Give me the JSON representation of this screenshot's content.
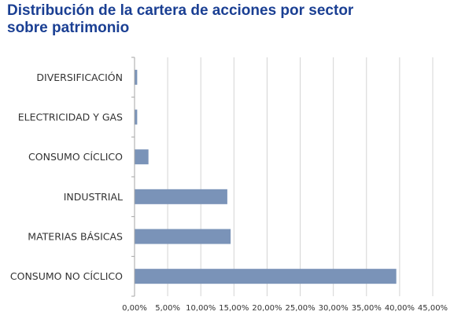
{
  "title_lines": [
    "Distribución de la cartera de acciones por sector",
    "sobre patrimonio"
  ],
  "chart_data": {
    "type": "bar",
    "orientation": "horizontal",
    "title": "Distribución de la cartera de acciones por sector sobre patrimonio",
    "categories": [
      "DIVERSIFICACIÓN",
      "ELECTRICIDAD Y GAS",
      "CONSUMO CÍCLICO",
      "INDUSTRIAL",
      "MATERIAS BÁSICAS",
      "CONSUMO NO CÍCLICO"
    ],
    "values": [
      0.4,
      0.4,
      2.1,
      14.0,
      14.5,
      39.5
    ],
    "xlim": [
      0,
      45
    ],
    "xticks": [
      "0,00%",
      "5,00%",
      "10,00%",
      "15,00%",
      "20,00%",
      "25,00%",
      "30,00%",
      "35,00%",
      "40,00%",
      "45,00%"
    ],
    "grid": "vertical",
    "colors": {
      "bar": "#7a93b8",
      "grid": "#d4d4d4",
      "axis": "#a6a6a6",
      "title": "#1a3f93"
    }
  }
}
